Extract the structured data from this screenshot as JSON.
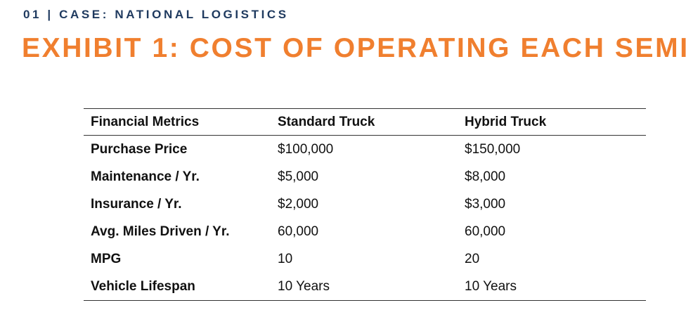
{
  "header": {
    "kicker": "01 | CASE: NATIONAL LOGISTICS",
    "title": "EXHIBIT 1: COST OF OPERATING EACH SEMI"
  },
  "table": {
    "columns": [
      "Financial Metrics",
      "Standard Truck",
      "Hybrid Truck"
    ],
    "rows": [
      [
        "Purchase Price",
        "$100,000",
        "$150,000"
      ],
      [
        "Maintenance / Yr.",
        "$5,000",
        "$8,000"
      ],
      [
        "Insurance / Yr.",
        "$2,000",
        "$3,000"
      ],
      [
        "Avg. Miles Driven / Yr.",
        "60,000",
        "60,000"
      ],
      [
        "MPG",
        "10",
        "20"
      ],
      [
        "Vehicle Lifespan",
        "10 Years",
        "10 Years"
      ]
    ]
  },
  "colors": {
    "title": "#f07f2f",
    "kicker": "#1f3a5f",
    "rule": "#333333"
  }
}
